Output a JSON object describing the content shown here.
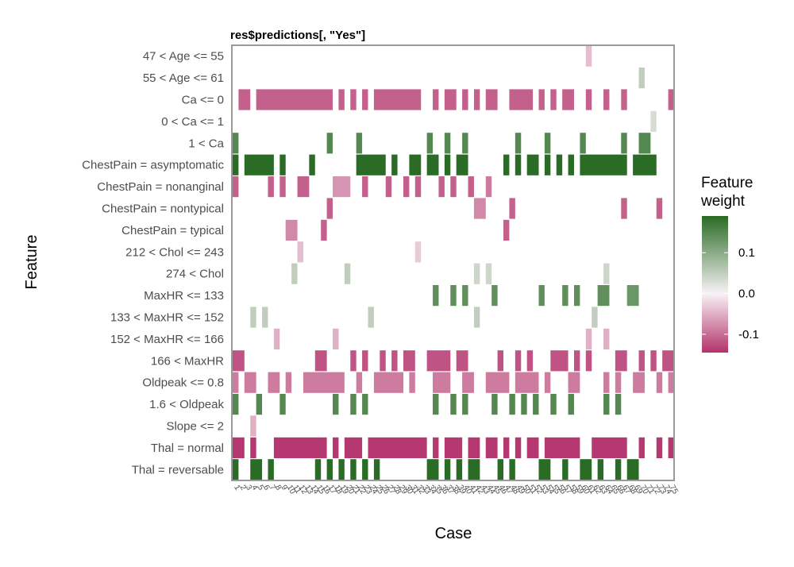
{
  "chart_data": {
    "type": "heatmap",
    "title": "res$predictions[, \"Yes\"]",
    "xlabel": "Case",
    "ylabel": "Feature",
    "features": [
      "47 < Age <= 55",
      "55 < Age <= 61",
      "Ca <= 0",
      "0 < Ca <= 1",
      "1 < Ca",
      "ChestPain = asymptomatic",
      "ChestPain = nonanginal",
      "ChestPain = nontypical",
      "ChestPain = typical",
      "212 < Chol <= 243",
      "274 < Chol",
      "MaxHR <= 133",
      "133 < MaxHR <= 152",
      "152 < MaxHR <= 166",
      "166 < MaxHR",
      "Oldpeak <= 0.8",
      "1.6 < Oldpeak",
      "Slope <= 2",
      "Thal = normal",
      "Thal = reversable"
    ],
    "cases": [
      "1",
      "2",
      "3",
      "4",
      "5",
      "6",
      "7",
      "8",
      "9",
      "10",
      "11",
      "12",
      "13",
      "14",
      "15",
      "16",
      "17",
      "18",
      "19",
      "20",
      "21",
      "22",
      "23",
      "24",
      "25",
      "26",
      "27",
      "28",
      "29",
      "30",
      "31",
      "32",
      "33",
      "34",
      "35",
      "36",
      "37",
      "38",
      "39",
      "40",
      "41",
      "42",
      "43",
      "44",
      "45",
      "46",
      "47",
      "48",
      "49",
      "50",
      "51",
      "52",
      "53",
      "54",
      "55",
      "56",
      "57",
      "58",
      "59",
      "60",
      "61",
      "62",
      "63",
      "64",
      "65",
      "66",
      "67",
      "68",
      "69",
      "70",
      "71",
      "72",
      "73",
      "74",
      "75"
    ],
    "cells": [
      {
        "f": 0,
        "segs": [
          [
            60,
            60,
            -0.04
          ]
        ]
      },
      {
        "f": 1,
        "segs": [
          [
            69,
            69,
            0.05
          ]
        ]
      },
      {
        "f": 2,
        "segs": [
          [
            1,
            2,
            -0.11
          ],
          [
            4,
            16,
            -0.11
          ],
          [
            18,
            18,
            -0.11
          ],
          [
            20,
            20,
            -0.11
          ],
          [
            22,
            22,
            -0.11
          ],
          [
            24,
            31,
            -0.11
          ],
          [
            34,
            34,
            -0.11
          ],
          [
            36,
            37,
            -0.11
          ],
          [
            39,
            39,
            -0.11
          ],
          [
            41,
            41,
            -0.11
          ],
          [
            43,
            44,
            -0.11
          ],
          [
            47,
            50,
            -0.11
          ],
          [
            52,
            52,
            -0.11
          ],
          [
            54,
            54,
            -0.11
          ],
          [
            56,
            57,
            -0.11
          ],
          [
            60,
            60,
            -0.11
          ],
          [
            63,
            63,
            -0.11
          ],
          [
            66,
            66,
            -0.11
          ],
          [
            74,
            74,
            -0.11
          ]
        ]
      },
      {
        "f": 3,
        "segs": [
          [
            71,
            71,
            0.03
          ]
        ]
      },
      {
        "f": 4,
        "segs": [
          [
            0,
            0,
            0.15
          ],
          [
            16,
            16,
            0.15
          ],
          [
            21,
            21,
            0.15
          ],
          [
            33,
            33,
            0.15
          ],
          [
            36,
            36,
            0.15
          ],
          [
            39,
            39,
            0.15
          ],
          [
            48,
            48,
            0.15
          ],
          [
            53,
            53,
            0.15
          ],
          [
            59,
            59,
            0.15
          ],
          [
            66,
            66,
            0.15
          ],
          [
            69,
            70,
            0.15
          ]
        ]
      },
      {
        "f": 5,
        "segs": [
          [
            0,
            0,
            0.19
          ],
          [
            2,
            6,
            0.19
          ],
          [
            8,
            8,
            0.19
          ],
          [
            13,
            13,
            0.19
          ],
          [
            21,
            25,
            0.19
          ],
          [
            27,
            27,
            0.19
          ],
          [
            30,
            31,
            0.19
          ],
          [
            33,
            34,
            0.19
          ],
          [
            36,
            36,
            0.19
          ],
          [
            38,
            39,
            0.19
          ],
          [
            46,
            46,
            0.19
          ],
          [
            48,
            48,
            0.19
          ],
          [
            50,
            51,
            0.19
          ],
          [
            53,
            53,
            0.19
          ],
          [
            55,
            55,
            0.19
          ],
          [
            57,
            57,
            0.19
          ],
          [
            59,
            66,
            0.19
          ],
          [
            68,
            71,
            0.19
          ]
        ]
      },
      {
        "f": 6,
        "segs": [
          [
            0,
            0,
            -0.11
          ],
          [
            6,
            6,
            -0.11
          ],
          [
            8,
            8,
            -0.11
          ],
          [
            11,
            12,
            -0.11
          ],
          [
            17,
            19,
            -0.07
          ],
          [
            22,
            22,
            -0.11
          ],
          [
            26,
            26,
            -0.11
          ],
          [
            29,
            29,
            -0.11
          ],
          [
            31,
            31,
            -0.11
          ],
          [
            35,
            35,
            -0.11
          ],
          [
            37,
            37,
            -0.11
          ],
          [
            40,
            40,
            -0.11
          ],
          [
            43,
            43,
            -0.09
          ]
        ]
      },
      {
        "f": 7,
        "segs": [
          [
            16,
            16,
            -0.11
          ],
          [
            41,
            42,
            -0.08
          ],
          [
            47,
            47,
            -0.11
          ],
          [
            66,
            66,
            -0.11
          ],
          [
            72,
            72,
            -0.11
          ]
        ]
      },
      {
        "f": 8,
        "segs": [
          [
            9,
            10,
            -0.08
          ],
          [
            15,
            15,
            -0.11
          ],
          [
            46,
            46,
            -0.11
          ]
        ]
      },
      {
        "f": 9,
        "segs": [
          [
            11,
            11,
            -0.04
          ],
          [
            31,
            31,
            -0.03
          ]
        ]
      },
      {
        "f": 10,
        "segs": [
          [
            10,
            10,
            0.05
          ],
          [
            19,
            19,
            0.05
          ],
          [
            41,
            41,
            0.04
          ],
          [
            43,
            43,
            0.04
          ],
          [
            63,
            63,
            0.04
          ]
        ]
      },
      {
        "f": 11,
        "segs": [
          [
            34,
            34,
            0.14
          ],
          [
            37,
            37,
            0.14
          ],
          [
            39,
            39,
            0.14
          ],
          [
            44,
            44,
            0.14
          ],
          [
            52,
            52,
            0.14
          ],
          [
            56,
            56,
            0.14
          ],
          [
            58,
            58,
            0.14
          ],
          [
            62,
            63,
            0.14
          ],
          [
            67,
            68,
            0.13
          ]
        ]
      },
      {
        "f": 12,
        "segs": [
          [
            3,
            3,
            0.05
          ],
          [
            5,
            5,
            0.05
          ],
          [
            23,
            23,
            0.05
          ],
          [
            41,
            41,
            0.05
          ],
          [
            61,
            61,
            0.05
          ]
        ]
      },
      {
        "f": 13,
        "segs": [
          [
            7,
            7,
            -0.05
          ],
          [
            17,
            17,
            -0.05
          ],
          [
            60,
            60,
            -0.05
          ],
          [
            63,
            63,
            -0.05
          ]
        ]
      },
      {
        "f": 14,
        "segs": [
          [
            0,
            1,
            -0.12
          ],
          [
            14,
            15,
            -0.12
          ],
          [
            20,
            20,
            -0.12
          ],
          [
            22,
            22,
            -0.12
          ],
          [
            25,
            25,
            -0.12
          ],
          [
            27,
            27,
            -0.12
          ],
          [
            29,
            30,
            -0.12
          ],
          [
            33,
            36,
            -0.12
          ],
          [
            38,
            39,
            -0.12
          ],
          [
            45,
            45,
            -0.12
          ],
          [
            48,
            48,
            -0.12
          ],
          [
            50,
            50,
            -0.12
          ],
          [
            54,
            56,
            -0.12
          ],
          [
            58,
            58,
            -0.12
          ],
          [
            60,
            60,
            -0.12
          ],
          [
            65,
            66,
            -0.12
          ],
          [
            69,
            69,
            -0.12
          ],
          [
            71,
            71,
            -0.12
          ],
          [
            73,
            74,
            -0.12
          ]
        ]
      },
      {
        "f": 15,
        "segs": [
          [
            0,
            0,
            -0.09
          ],
          [
            2,
            3,
            -0.09
          ],
          [
            6,
            7,
            -0.09
          ],
          [
            9,
            9,
            -0.09
          ],
          [
            12,
            18,
            -0.09
          ],
          [
            21,
            21,
            -0.09
          ],
          [
            24,
            28,
            -0.09
          ],
          [
            30,
            30,
            -0.09
          ],
          [
            34,
            36,
            -0.09
          ],
          [
            39,
            40,
            -0.09
          ],
          [
            43,
            46,
            -0.09
          ],
          [
            48,
            51,
            -0.09
          ],
          [
            53,
            53,
            -0.09
          ],
          [
            57,
            58,
            -0.09
          ],
          [
            63,
            63,
            -0.09
          ],
          [
            65,
            65,
            -0.09
          ],
          [
            68,
            69,
            -0.09
          ],
          [
            72,
            72,
            -0.09
          ],
          [
            74,
            74,
            -0.09
          ]
        ]
      },
      {
        "f": 16,
        "segs": [
          [
            0,
            0,
            0.15
          ],
          [
            4,
            4,
            0.15
          ],
          [
            8,
            8,
            0.15
          ],
          [
            17,
            17,
            0.15
          ],
          [
            20,
            20,
            0.15
          ],
          [
            22,
            22,
            0.15
          ],
          [
            34,
            34,
            0.15
          ],
          [
            37,
            37,
            0.15
          ],
          [
            39,
            39,
            0.15
          ],
          [
            44,
            44,
            0.15
          ],
          [
            47,
            47,
            0.15
          ],
          [
            49,
            49,
            0.15
          ],
          [
            51,
            51,
            0.15
          ],
          [
            54,
            54,
            0.15
          ],
          [
            57,
            57,
            0.15
          ],
          [
            63,
            63,
            0.15
          ],
          [
            65,
            65,
            0.15
          ]
        ]
      },
      {
        "f": 17,
        "segs": [
          [
            3,
            3,
            -0.05
          ]
        ]
      },
      {
        "f": 18,
        "segs": [
          [
            0,
            1,
            -0.14
          ],
          [
            3,
            3,
            -0.14
          ],
          [
            7,
            15,
            -0.14
          ],
          [
            17,
            17,
            -0.14
          ],
          [
            19,
            21,
            -0.14
          ],
          [
            23,
            32,
            -0.14
          ],
          [
            34,
            34,
            -0.14
          ],
          [
            36,
            38,
            -0.14
          ],
          [
            40,
            41,
            -0.14
          ],
          [
            43,
            44,
            -0.14
          ],
          [
            46,
            46,
            -0.14
          ],
          [
            48,
            48,
            -0.14
          ],
          [
            50,
            51,
            -0.14
          ],
          [
            53,
            58,
            -0.14
          ],
          [
            61,
            66,
            -0.14
          ],
          [
            69,
            69,
            -0.14
          ],
          [
            72,
            72,
            -0.14
          ],
          [
            74,
            74,
            -0.14
          ]
        ]
      },
      {
        "f": 19,
        "segs": [
          [
            0,
            0,
            0.19
          ],
          [
            3,
            4,
            0.19
          ],
          [
            6,
            6,
            0.19
          ],
          [
            14,
            14,
            0.19
          ],
          [
            16,
            16,
            0.19
          ],
          [
            18,
            18,
            0.19
          ],
          [
            20,
            20,
            0.19
          ],
          [
            22,
            22,
            0.19
          ],
          [
            24,
            24,
            0.19
          ],
          [
            33,
            34,
            0.19
          ],
          [
            36,
            36,
            0.19
          ],
          [
            38,
            38,
            0.19
          ],
          [
            40,
            41,
            0.19
          ],
          [
            45,
            45,
            0.19
          ],
          [
            47,
            47,
            0.19
          ],
          [
            52,
            53,
            0.19
          ],
          [
            56,
            56,
            0.19
          ],
          [
            59,
            60,
            0.19
          ],
          [
            62,
            62,
            0.19
          ],
          [
            65,
            65,
            0.19
          ],
          [
            67,
            68,
            0.19
          ]
        ]
      }
    ],
    "legend": {
      "title_lines": [
        "Feature",
        "weight"
      ],
      "ticks": [
        0.1,
        0.0,
        -0.1
      ],
      "tick_labels": [
        "0.1",
        "0.0",
        "-0.1"
      ],
      "range": [
        -0.145,
        0.19
      ],
      "colors": [
        "#2a6b25",
        "#f7f2f5",
        "#b3326b"
      ]
    }
  }
}
